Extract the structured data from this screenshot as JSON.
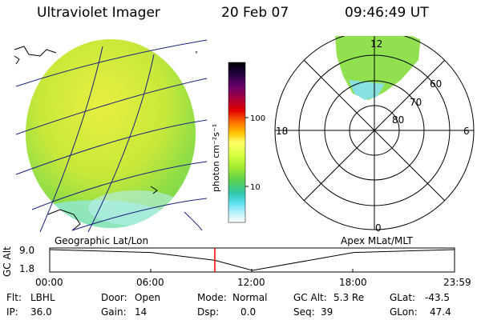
{
  "header": {
    "instrument": "Ultraviolet Imager",
    "date": "20 Feb 07",
    "time": "09:46:49 UT"
  },
  "colorbar": {
    "label": "photon cm⁻²s⁻¹",
    "ticks": [
      "100",
      "10"
    ],
    "colors": [
      "#000000",
      "#20003a",
      "#60006a",
      "#a00040",
      "#e00000",
      "#ff7a00",
      "#ffc000",
      "#ffff66",
      "#d8ff40",
      "#a0e830",
      "#58d050",
      "#30c8b0",
      "#60e0f0",
      "#b8f0f8",
      "#ffffff"
    ]
  },
  "geo_panel": {
    "label": "Geographic Lat/Lon",
    "fill_colors": [
      "#c8e83a",
      "#e8f040",
      "#78d850",
      "#90e8e0"
    ]
  },
  "polar_panel": {
    "label": "Apex MLat/MLT",
    "mlt_labels": {
      "top": "12",
      "left": "18",
      "right": "6",
      "bottom": "0"
    },
    "lat_labels": [
      "60",
      "70",
      "80"
    ]
  },
  "timeline": {
    "ylabel": "GC Alt",
    "yticks": [
      "9.0",
      "1.8"
    ],
    "xticks": [
      "00:00",
      "06:00",
      "12:00",
      "18:00",
      "23:59"
    ],
    "marker_color": "#ff0000"
  },
  "chart_data": {
    "type": "line",
    "title": "",
    "xlabel": "",
    "ylabel": "GC Alt",
    "x": [
      "00:00",
      "06:00",
      "09:47",
      "12:00",
      "18:00",
      "23:59"
    ],
    "series": [
      {
        "name": "",
        "values": [
          9.0,
          8.0,
          5.3,
          1.8,
          8.0,
          9.0
        ]
      }
    ],
    "ylim": [
      1.8,
      9.0
    ],
    "marker_time": "09:46:49"
  },
  "status": {
    "flt_label": "Flt:",
    "flt_value": "LBHL",
    "ip_label": "IP:",
    "ip_value": "36.0",
    "door_label": "Door:",
    "door_value": "Open",
    "gain_label": "Gain:",
    "gain_value": "14",
    "mode_label": "Mode:",
    "mode_value": "Normal",
    "dsp_label": "Dsp:",
    "dsp_value": "0.0",
    "gcalt_label": "GC Alt:",
    "gcalt_value": "5.3 Re",
    "seq_label": "Seq:",
    "seq_value": "39",
    "glat_label": "GLat:",
    "glat_value": "-43.5",
    "glon_label": "GLon:",
    "glon_value": "47.4"
  }
}
